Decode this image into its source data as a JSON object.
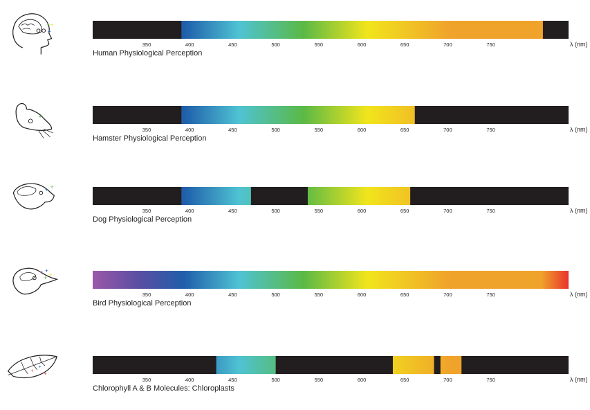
{
  "unit_label": "λ (nm)",
  "ticks": [
    350,
    400,
    450,
    500,
    550,
    600,
    650,
    700,
    750
  ],
  "colors": {
    "black": "#221e1f",
    "violet": "#9b58a8",
    "indigo": "#5a4ea2",
    "blue": "#1f5eaa",
    "cyan": "#4fc3d3",
    "green": "#5ab946",
    "yellow": "#f1e51c",
    "orange": "#f0a32b",
    "red": "#e9332c"
  },
  "chart_data": [
    {
      "type": "bar",
      "label": "Human Physiological Perception",
      "icon": "human-head-icon",
      "x_range": [
        300,
        820
      ],
      "visible_bands": [
        [
          397,
          792
        ]
      ]
    },
    {
      "type": "bar",
      "label": "Hamster Physiological Perception",
      "icon": "hamster-head-icon",
      "x_range": [
        300,
        820
      ],
      "visible_bands": [
        [
          397,
          652
        ]
      ]
    },
    {
      "type": "bar",
      "label": "Dog Physiological Perception",
      "icon": "dog-head-icon",
      "x_range": [
        300,
        820
      ],
      "visible_bands": [
        [
          397,
          473
        ],
        [
          535,
          647
        ]
      ]
    },
    {
      "type": "bar",
      "label": "Bird Physiological Perception",
      "icon": "bird-head-icon",
      "x_range": [
        300,
        820
      ],
      "visible_bands": [
        [
          300,
          820
        ]
      ]
    },
    {
      "type": "bar",
      "label": "Chlorophyll A & B Molecules: Chloroplasts",
      "icon": "leaf-icon",
      "x_range": [
        300,
        820
      ],
      "visible_bands": [
        [
          435,
          500
        ],
        [
          628,
          673
        ],
        [
          680,
          703
        ]
      ]
    }
  ]
}
